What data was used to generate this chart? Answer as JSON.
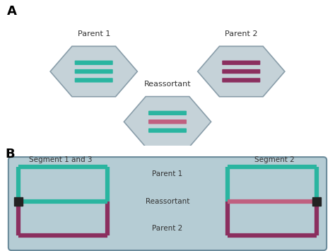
{
  "teal": "#2ab5a0",
  "purple": "#8b2f5f",
  "pink": "#c06080",
  "hex_fill": "#c5d2d8",
  "hex_edge": "#8a9eaa",
  "panel_bg": "#b5ccd4",
  "panel_border": "#6a8a9a",
  "white": "#ffffff",
  "dark_text": "#333333",
  "label_A": "A",
  "label_B": "B",
  "parent1_label": "Parent 1",
  "parent2_label": "Parent 2",
  "reassortant_label": "Reassortant",
  "seg13_label": "Segment 1 and 3",
  "seg2_label": "Segment 2",
  "p1_label": "Parent 1",
  "p2_label": "Parent 2",
  "r_label": "Reassortant"
}
